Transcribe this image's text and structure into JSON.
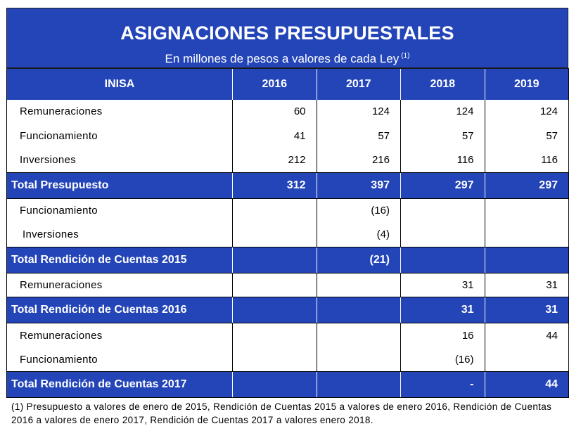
{
  "header": {
    "title": "ASIGNACIONES PRESUPUESTALES",
    "subtitle": "En millones de pesos a valores de cada Ley",
    "subtitle_note": "(1)"
  },
  "table": {
    "columns": [
      "INISA",
      "2016",
      "2017",
      "2018",
      "2019"
    ],
    "rows": [
      {
        "kind": "item",
        "label": "Remuneraciones",
        "values": [
          "60",
          "124",
          "124",
          "124"
        ]
      },
      {
        "kind": "item",
        "label": "Funcionamiento",
        "values": [
          "41",
          "57",
          "57",
          "57"
        ]
      },
      {
        "kind": "item",
        "label": "Inversiones",
        "values": [
          "212",
          "216",
          "116",
          "116"
        ]
      },
      {
        "kind": "total",
        "label": "Total Presupuesto",
        "values": [
          "312",
          "397",
          "297",
          "297"
        ]
      },
      {
        "kind": "item",
        "label": "Funcionamiento",
        "values": [
          "",
          "(16)",
          "",
          ""
        ]
      },
      {
        "kind": "item",
        "label": "Inversiones",
        "values": [
          "",
          "(4)",
          "",
          ""
        ]
      },
      {
        "kind": "total",
        "label": "Total Rendición de Cuentas 2015",
        "values": [
          "",
          "(21)",
          "",
          ""
        ]
      },
      {
        "kind": "item",
        "label": "Remuneraciones",
        "values": [
          "",
          "",
          "31",
          "31"
        ]
      },
      {
        "kind": "total",
        "label": "Total Rendición de Cuentas 2016",
        "values": [
          "",
          "",
          "31",
          "31"
        ]
      },
      {
        "kind": "item",
        "label": "Remuneraciones",
        "values": [
          "",
          "",
          "16",
          "44"
        ]
      },
      {
        "kind": "item",
        "label": "Funcionamiento",
        "values": [
          "",
          "",
          "(16)",
          ""
        ]
      },
      {
        "kind": "total",
        "label": "Total Rendición de Cuentas 2017",
        "values": [
          "",
          "",
          "-",
          "44"
        ]
      }
    ]
  },
  "footnote": "(1) Presupuesto a valores de enero de 2015, Rendición de Cuentas 2015 a valores de enero 2016, Rendición de Cuentas 2016 a valores de enero 2017, Rendición de Cuentas 2017 a valores enero 2018."
}
